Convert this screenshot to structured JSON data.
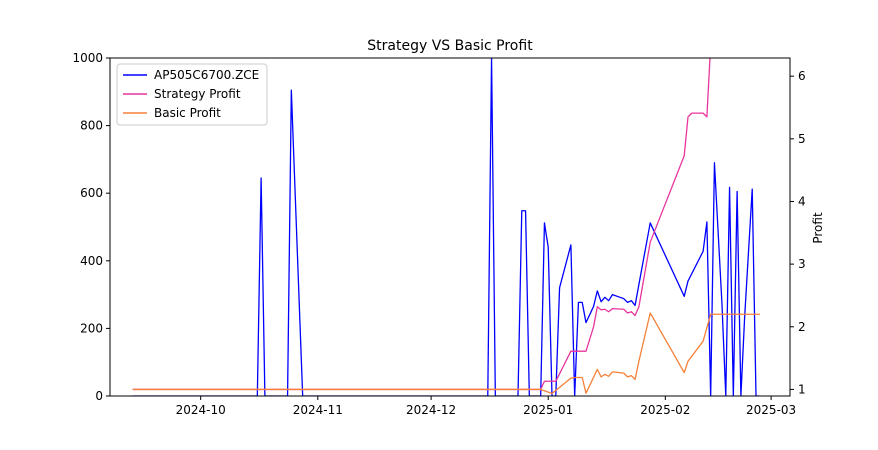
{
  "chart_data": {
    "type": "line",
    "title": "Strategy VS Basic Profit",
    "xlabel": "",
    "ylabel": "",
    "y2label": "Profit",
    "xlim": [
      "2024-09-07",
      "2025-03-06"
    ],
    "ylim": [
      0,
      1000
    ],
    "y2lim": [
      0.895,
      6.29
    ],
    "x_ticks": [
      "2024-10",
      "2024-11",
      "2024-12",
      "2025-01",
      "2025-02",
      "2025-03"
    ],
    "x_tick_dates": [
      "2024-10-01",
      "2024-11-01",
      "2024-12-01",
      "2025-01-01",
      "2025-02-01",
      "2025-03-01"
    ],
    "y_ticks": [
      0,
      200,
      400,
      600,
      800,
      1000
    ],
    "y2_ticks": [
      1,
      2,
      3,
      4,
      5,
      6
    ],
    "legend_position": "upper left",
    "grid": false,
    "series": [
      {
        "name": "AP505C6700.ZCE",
        "axis": "left",
        "color": "#0000ff",
        "points": [
          [
            "2024-09-13",
            0
          ],
          [
            "2024-10-16",
            0
          ],
          [
            "2024-10-17",
            645
          ],
          [
            "2024-10-18",
            0
          ],
          [
            "2024-10-24",
            0
          ],
          [
            "2024-10-25",
            905
          ],
          [
            "2024-10-28",
            0
          ],
          [
            "2024-12-16",
            0
          ],
          [
            "2024-12-17",
            1000
          ],
          [
            "2024-12-18",
            0
          ],
          [
            "2024-12-24",
            0
          ],
          [
            "2024-12-25",
            548
          ],
          [
            "2024-12-26",
            548
          ],
          [
            "2024-12-27",
            0
          ],
          [
            "2024-12-30",
            0
          ],
          [
            "2024-12-31",
            512
          ],
          [
            "2025-01-01",
            440
          ],
          [
            "2025-01-02",
            0
          ],
          [
            "2025-01-03",
            0
          ],
          [
            "2025-01-04",
            320
          ],
          [
            "2025-01-07",
            447
          ],
          [
            "2025-01-08",
            0
          ],
          [
            "2025-01-09",
            277
          ],
          [
            "2025-01-10",
            277
          ],
          [
            "2025-01-11",
            217
          ],
          [
            "2025-01-13",
            265
          ],
          [
            "2025-01-14",
            311
          ],
          [
            "2025-01-15",
            279
          ],
          [
            "2025-01-16",
            292
          ],
          [
            "2025-01-17",
            282
          ],
          [
            "2025-01-18",
            300
          ],
          [
            "2025-01-20",
            292
          ],
          [
            "2025-01-21",
            288
          ],
          [
            "2025-01-22",
            277
          ],
          [
            "2025-01-23",
            282
          ],
          [
            "2025-01-24",
            268
          ],
          [
            "2025-01-25",
            330
          ],
          [
            "2025-01-28",
            512
          ],
          [
            "2025-02-06",
            295
          ],
          [
            "2025-02-07",
            340
          ],
          [
            "2025-02-11",
            428
          ],
          [
            "2025-02-12",
            515
          ],
          [
            "2025-02-13",
            0
          ],
          [
            "2025-02-14",
            690
          ],
          [
            "2025-02-16",
            270
          ],
          [
            "2025-02-17",
            0
          ],
          [
            "2025-02-18",
            617
          ],
          [
            "2025-02-19",
            0
          ],
          [
            "2025-02-20",
            605
          ],
          [
            "2025-02-21",
            0
          ],
          [
            "2025-02-22",
            235
          ],
          [
            "2025-02-24",
            612
          ],
          [
            "2025-02-25",
            0
          ],
          [
            "2025-02-26",
            0
          ]
        ]
      },
      {
        "name": "Strategy Profit",
        "axis": "right",
        "color": "#e8359f",
        "points": [
          [
            "2024-09-13",
            1.0
          ],
          [
            "2024-12-25",
            1.0
          ],
          [
            "2024-12-30",
            1.0
          ],
          [
            "2024-12-31",
            1.13
          ],
          [
            "2025-01-03",
            1.13
          ],
          [
            "2025-01-07",
            1.61
          ],
          [
            "2025-01-11",
            1.61
          ],
          [
            "2025-01-13",
            2.0
          ],
          [
            "2025-01-14",
            2.32
          ],
          [
            "2025-01-15",
            2.27
          ],
          [
            "2025-01-16",
            2.28
          ],
          [
            "2025-01-17",
            2.24
          ],
          [
            "2025-01-18",
            2.29
          ],
          [
            "2025-01-21",
            2.28
          ],
          [
            "2025-01-22",
            2.22
          ],
          [
            "2025-01-23",
            2.24
          ],
          [
            "2025-01-24",
            2.18
          ],
          [
            "2025-01-25",
            2.32
          ],
          [
            "2025-01-28",
            3.35
          ],
          [
            "2025-02-06",
            4.73
          ],
          [
            "2025-02-07",
            5.35
          ],
          [
            "2025-02-08",
            5.41
          ],
          [
            "2025-02-11",
            5.41
          ],
          [
            "2025-02-12",
            5.35
          ],
          [
            "2025-02-13",
            6.5
          ]
        ]
      },
      {
        "name": "Basic Profit",
        "axis": "right",
        "color": "#f58038",
        "points": [
          [
            "2024-09-13",
            1.0
          ],
          [
            "2024-12-25",
            1.0
          ],
          [
            "2024-12-30",
            1.0
          ],
          [
            "2025-01-02",
            0.935
          ],
          [
            "2025-01-07",
            1.18
          ],
          [
            "2025-01-08",
            1.19
          ],
          [
            "2025-01-10",
            1.19
          ],
          [
            "2025-01-11",
            0.94
          ],
          [
            "2025-01-14",
            1.32
          ],
          [
            "2025-01-15",
            1.2
          ],
          [
            "2025-01-16",
            1.24
          ],
          [
            "2025-01-17",
            1.21
          ],
          [
            "2025-01-18",
            1.28
          ],
          [
            "2025-01-21",
            1.26
          ],
          [
            "2025-01-22",
            1.2
          ],
          [
            "2025-01-23",
            1.22
          ],
          [
            "2025-01-24",
            1.16
          ],
          [
            "2025-01-25",
            1.45
          ],
          [
            "2025-01-28",
            2.22
          ],
          [
            "2025-02-06",
            1.27
          ],
          [
            "2025-02-07",
            1.45
          ],
          [
            "2025-02-11",
            1.77
          ],
          [
            "2025-02-13",
            2.2
          ],
          [
            "2025-02-26",
            2.2
          ]
        ]
      }
    ]
  }
}
